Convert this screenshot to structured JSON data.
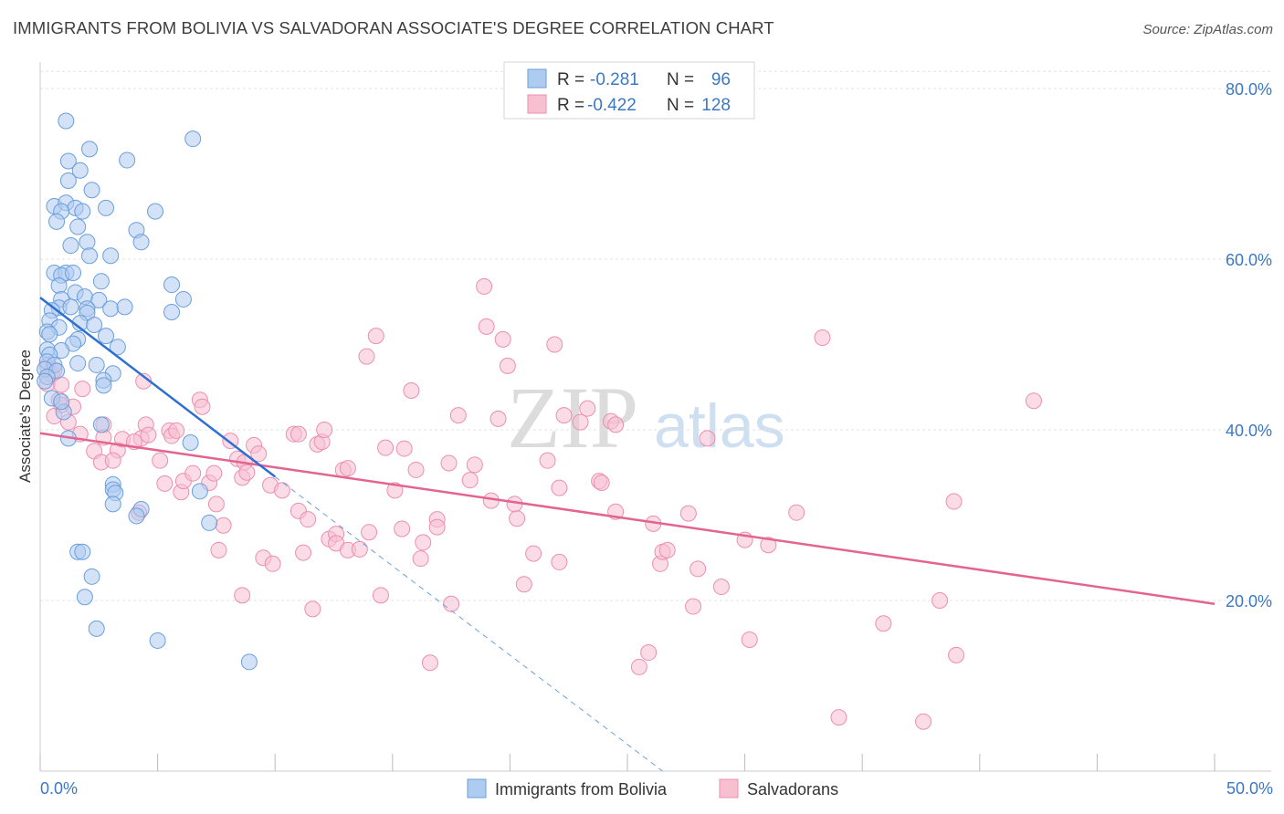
{
  "title": "IMMIGRANTS FROM BOLIVIA VS SALVADORAN ASSOCIATE'S DEGREE CORRELATION CHART",
  "source": "Source: ZipAtlas.com",
  "watermark": {
    "zip": "ZIP",
    "atlas": "atlas"
  },
  "colors": {
    "blue_fill": "#aecbf0",
    "blue_stroke": "#6a9fdc",
    "blue_line": "#2d6fd2",
    "pink_fill": "#f7c0d1",
    "pink_stroke": "#ec8fae",
    "pink_line": "#e36490",
    "axis_label": "#3b78c4",
    "grid": "#e3e3e3"
  },
  "legend": {
    "rows": [
      {
        "series": "Immigrants from Bolivia",
        "r_label": "R =",
        "r_value": "-0.281",
        "n_label": "N =",
        "n_value": "96"
      },
      {
        "series": "Salvadorans",
        "r_label": "R =",
        "r_value": "-0.422",
        "n_label": "N =",
        "n_value": "128"
      }
    ]
  },
  "chart_data": {
    "type": "scatter",
    "title": "IMMIGRANTS FROM BOLIVIA VS SALVADORAN ASSOCIATE'S DEGREE CORRELATION CHART",
    "xlabel": "",
    "ylabel": "Associate's Degree",
    "xlim": [
      0,
      50
    ],
    "ylim": [
      0,
      83
    ],
    "x_tick_labels": [
      "0.0%",
      "50.0%"
    ],
    "y_ticks": [
      20,
      40,
      60,
      80
    ],
    "y_tick_labels": [
      "20.0%",
      "40.0%",
      "60.0%",
      "80.0%"
    ],
    "grid": true,
    "legend_position": "top-center",
    "series": [
      {
        "name": "Immigrants from Bolivia",
        "color": "blue",
        "r": -0.281,
        "n": 96,
        "trend": {
          "x": [
            0,
            10
          ],
          "y": [
            55.5,
            34.5
          ]
        },
        "trend_extension": {
          "x": [
            10,
            26.5
          ],
          "y": [
            34.5,
            0
          ]
        },
        "points": [
          [
            1.1,
            76.2
          ],
          [
            6.5,
            74.1
          ],
          [
            2.1,
            72.9
          ],
          [
            3.7,
            71.6
          ],
          [
            1.2,
            71.5
          ],
          [
            1.7,
            70.4
          ],
          [
            1.2,
            69.2
          ],
          [
            2.2,
            68.1
          ],
          [
            0.6,
            66.2
          ],
          [
            1.1,
            66.6
          ],
          [
            1.5,
            66.0
          ],
          [
            2.8,
            66.0
          ],
          [
            1.8,
            65.6
          ],
          [
            0.9,
            65.6
          ],
          [
            4.9,
            65.6
          ],
          [
            0.7,
            64.4
          ],
          [
            1.6,
            63.8
          ],
          [
            4.1,
            63.4
          ],
          [
            2.0,
            62.0
          ],
          [
            4.3,
            62.0
          ],
          [
            1.3,
            61.6
          ],
          [
            2.1,
            60.4
          ],
          [
            3.0,
            60.4
          ],
          [
            0.6,
            58.4
          ],
          [
            1.1,
            58.4
          ],
          [
            0.9,
            58.1
          ],
          [
            1.4,
            58.4
          ],
          [
            2.6,
            57.4
          ],
          [
            0.8,
            56.9
          ],
          [
            1.5,
            56.1
          ],
          [
            5.6,
            57.0
          ],
          [
            1.9,
            55.6
          ],
          [
            0.9,
            55.3
          ],
          [
            2.5,
            55.2
          ],
          [
            6.1,
            55.3
          ],
          [
            0.8,
            54.3
          ],
          [
            1.3,
            54.4
          ],
          [
            0.5,
            54.0
          ],
          [
            2.0,
            54.2
          ],
          [
            3.0,
            54.2
          ],
          [
            2.0,
            53.7
          ],
          [
            3.6,
            54.4
          ],
          [
            5.6,
            53.8
          ],
          [
            0.4,
            52.8
          ],
          [
            0.8,
            52.0
          ],
          [
            1.7,
            52.5
          ],
          [
            2.3,
            52.3
          ],
          [
            0.3,
            51.5
          ],
          [
            0.4,
            51.2
          ],
          [
            2.8,
            51.0
          ],
          [
            1.6,
            50.6
          ],
          [
            1.4,
            50.1
          ],
          [
            3.3,
            49.7
          ],
          [
            0.3,
            49.4
          ],
          [
            0.9,
            49.3
          ],
          [
            0.4,
            48.8
          ],
          [
            0.3,
            48.0
          ],
          [
            0.6,
            47.6
          ],
          [
            1.6,
            47.8
          ],
          [
            2.4,
            47.6
          ],
          [
            0.2,
            47.1
          ],
          [
            0.7,
            46.9
          ],
          [
            0.3,
            46.2
          ],
          [
            3.1,
            46.6
          ],
          [
            2.7,
            45.8
          ],
          [
            0.2,
            45.7
          ],
          [
            2.7,
            45.2
          ],
          [
            0.5,
            43.7
          ],
          [
            1.0,
            42.1
          ],
          [
            0.9,
            43.3
          ],
          [
            2.6,
            40.6
          ],
          [
            6.4,
            38.5
          ],
          [
            1.2,
            39.0
          ],
          [
            3.1,
            33.6
          ],
          [
            3.1,
            33.0
          ],
          [
            3.2,
            32.6
          ],
          [
            6.8,
            32.8
          ],
          [
            3.1,
            31.3
          ],
          [
            4.3,
            30.7
          ],
          [
            4.1,
            29.9
          ],
          [
            7.2,
            29.1
          ],
          [
            1.6,
            25.7
          ],
          [
            1.8,
            25.7
          ],
          [
            2.2,
            22.8
          ],
          [
            1.9,
            20.4
          ],
          [
            2.4,
            16.7
          ],
          [
            5.0,
            15.3
          ],
          [
            8.9,
            12.8
          ]
        ]
      },
      {
        "name": "Salvadorans",
        "color": "pink",
        "r": -0.422,
        "n": 128,
        "trend": {
          "x": [
            0,
            50
          ],
          "y": [
            39.6,
            19.6
          ]
        },
        "points": [
          [
            0.3,
            47.5
          ],
          [
            0.5,
            46.5
          ],
          [
            0.6,
            47.0
          ],
          [
            0.3,
            45.4
          ],
          [
            0.9,
            45.3
          ],
          [
            1.8,
            44.8
          ],
          [
            0.8,
            43.5
          ],
          [
            0.9,
            42.9
          ],
          [
            1.4,
            42.7
          ],
          [
            0.6,
            41.6
          ],
          [
            1.2,
            40.9
          ],
          [
            2.7,
            40.6
          ],
          [
            1.7,
            39.5
          ],
          [
            2.7,
            39.1
          ],
          [
            2.3,
            37.5
          ],
          [
            3.3,
            37.6
          ],
          [
            2.6,
            36.2
          ],
          [
            3.1,
            36.4
          ],
          [
            3.5,
            38.9
          ],
          [
            4.3,
            39.0
          ],
          [
            4.0,
            38.6
          ],
          [
            4.2,
            30.3
          ],
          [
            4.4,
            45.7
          ],
          [
            4.5,
            40.6
          ],
          [
            4.6,
            39.4
          ],
          [
            5.1,
            36.4
          ],
          [
            5.3,
            33.7
          ],
          [
            5.5,
            39.9
          ],
          [
            5.6,
            39.3
          ],
          [
            5.8,
            39.9
          ],
          [
            6.0,
            32.7
          ],
          [
            6.1,
            34.0
          ],
          [
            6.5,
            34.9
          ],
          [
            6.8,
            43.5
          ],
          [
            6.9,
            42.7
          ],
          [
            7.2,
            33.8
          ],
          [
            7.4,
            34.9
          ],
          [
            7.5,
            31.3
          ],
          [
            7.8,
            28.8
          ],
          [
            7.6,
            25.9
          ],
          [
            8.1,
            38.7
          ],
          [
            8.4,
            36.6
          ],
          [
            8.6,
            34.4
          ],
          [
            8.6,
            20.6
          ],
          [
            8.7,
            36.2
          ],
          [
            8.8,
            35.0
          ],
          [
            9.1,
            38.2
          ],
          [
            9.3,
            37.2
          ],
          [
            9.5,
            25.0
          ],
          [
            9.9,
            24.3
          ],
          [
            9.8,
            33.5
          ],
          [
            10.3,
            32.9
          ],
          [
            10.8,
            39.5
          ],
          [
            11.0,
            39.5
          ],
          [
            11.0,
            30.5
          ],
          [
            11.2,
            25.6
          ],
          [
            11.4,
            29.5
          ],
          [
            11.6,
            19.0
          ],
          [
            11.8,
            38.3
          ],
          [
            12.0,
            38.6
          ],
          [
            12.1,
            40.0
          ],
          [
            12.3,
            27.2
          ],
          [
            12.6,
            27.8
          ],
          [
            12.6,
            26.7
          ],
          [
            12.9,
            35.3
          ],
          [
            13.1,
            35.5
          ],
          [
            13.1,
            25.9
          ],
          [
            13.6,
            26.0
          ],
          [
            13.9,
            48.6
          ],
          [
            14.0,
            28.0
          ],
          [
            14.3,
            51.0
          ],
          [
            14.5,
            20.6
          ],
          [
            14.7,
            37.9
          ],
          [
            15.1,
            32.9
          ],
          [
            15.4,
            28.4
          ],
          [
            15.5,
            37.8
          ],
          [
            15.8,
            44.6
          ],
          [
            16.0,
            35.3
          ],
          [
            16.2,
            24.9
          ],
          [
            16.3,
            26.8
          ],
          [
            16.6,
            12.7
          ],
          [
            16.9,
            29.5
          ],
          [
            16.9,
            28.6
          ],
          [
            17.4,
            36.1
          ],
          [
            17.5,
            19.6
          ],
          [
            17.8,
            41.7
          ],
          [
            18.3,
            34.1
          ],
          [
            18.5,
            35.9
          ],
          [
            18.9,
            56.8
          ],
          [
            19.0,
            52.1
          ],
          [
            19.2,
            31.7
          ],
          [
            19.5,
            41.3
          ],
          [
            19.7,
            50.6
          ],
          [
            19.9,
            47.5
          ],
          [
            20.2,
            31.3
          ],
          [
            20.3,
            29.6
          ],
          [
            20.6,
            21.9
          ],
          [
            21.0,
            25.5
          ],
          [
            21.6,
            36.4
          ],
          [
            21.9,
            50.0
          ],
          [
            22.1,
            24.5
          ],
          [
            22.1,
            33.2
          ],
          [
            22.3,
            41.7
          ],
          [
            23.3,
            42.5
          ],
          [
            23.0,
            40.9
          ],
          [
            23.8,
            34.0
          ],
          [
            23.9,
            33.8
          ],
          [
            24.3,
            41.0
          ],
          [
            24.5,
            40.6
          ],
          [
            24.5,
            30.4
          ],
          [
            25.5,
            12.2
          ],
          [
            25.9,
            13.9
          ],
          [
            26.1,
            29.0
          ],
          [
            26.4,
            24.3
          ],
          [
            26.5,
            25.7
          ],
          [
            26.7,
            25.9
          ],
          [
            27.6,
            30.2
          ],
          [
            27.8,
            19.3
          ],
          [
            28.0,
            23.7
          ],
          [
            28.4,
            39.0
          ],
          [
            29.0,
            21.6
          ],
          [
            30.0,
            27.1
          ],
          [
            30.2,
            15.4
          ],
          [
            31.0,
            26.5
          ],
          [
            32.2,
            30.3
          ],
          [
            33.3,
            50.8
          ],
          [
            34.0,
            6.3
          ],
          [
            35.9,
            17.3
          ],
          [
            37.6,
            5.8
          ],
          [
            38.3,
            20.0
          ],
          [
            39.0,
            13.6
          ],
          [
            38.9,
            31.6
          ],
          [
            42.3,
            43.4
          ]
        ]
      }
    ]
  },
  "bottom_legend": [
    "Immigrants from Bolivia",
    "Salvadorans"
  ]
}
